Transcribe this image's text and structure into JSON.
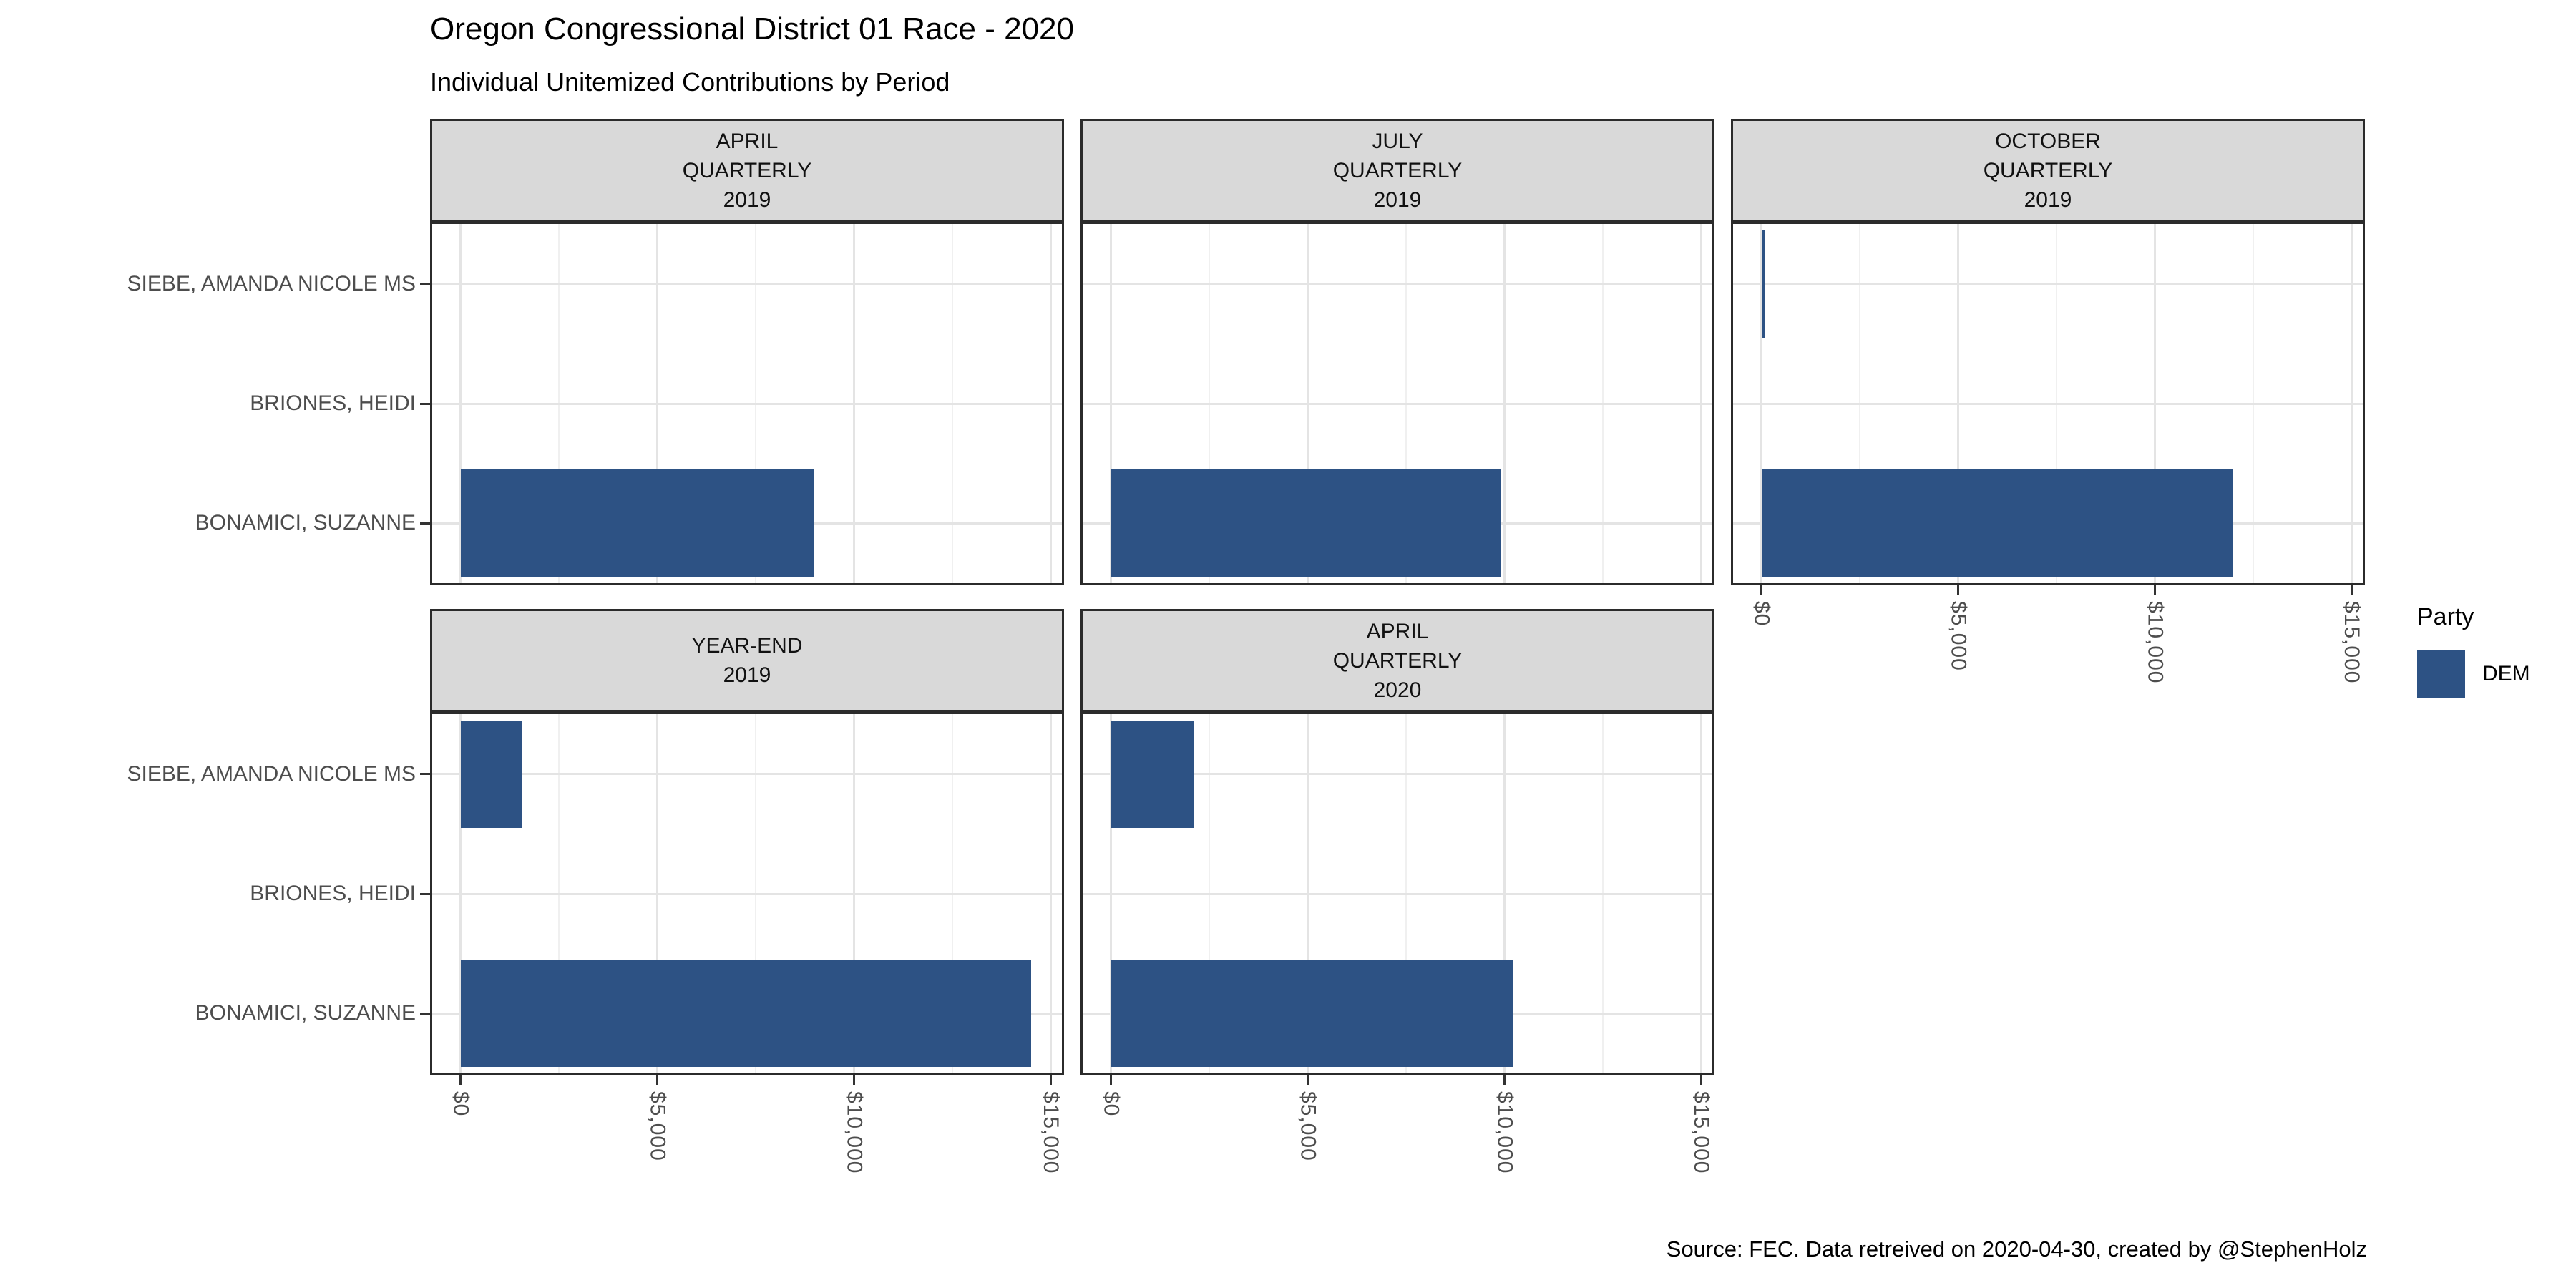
{
  "chart_data": {
    "type": "bar",
    "orientation": "horizontal",
    "title": "Oregon Congressional District 01 Race - 2020",
    "subtitle": "Individual Unitemized Contributions by Period",
    "caption": "Source: FEC. Data retreived on 2020-04-30, created by @StephenHolz",
    "categories": [
      "SIEBE, AMANDA NICOLE MS",
      "BRIONES, HEIDI",
      "BONAMICI, SUZANNE"
    ],
    "x_axis": {
      "tick_labels": [
        "$0",
        "$5,000",
        "$10,000",
        "$15,000"
      ],
      "tick_values": [
        0,
        5000,
        10000,
        15000
      ],
      "minor_tick_values": [
        2500,
        7500,
        12500
      ],
      "xlim": [
        0,
        15000
      ],
      "grid": true,
      "label_rotation_deg": 90
    },
    "facets": [
      {
        "label": "APRIL QUARTERLY 2019",
        "label_lines": [
          "APRIL",
          "QUARTERLY",
          "2019"
        ],
        "values": [
          0,
          0,
          9000
        ]
      },
      {
        "label": "JULY QUARTERLY 2019",
        "label_lines": [
          "JULY",
          "QUARTERLY",
          "2019"
        ],
        "values": [
          0,
          0,
          9900
        ]
      },
      {
        "label": "OCTOBER QUARTERLY 2019",
        "label_lines": [
          "OCTOBER",
          "QUARTERLY",
          "2019"
        ],
        "values": [
          100,
          0,
          12000
        ]
      },
      {
        "label": "YEAR-END 2019",
        "label_lines": [
          "YEAR-END",
          "2019"
        ],
        "values": [
          1570,
          0,
          14500
        ]
      },
      {
        "label": "APRIL QUARTERLY 2020",
        "label_lines": [
          "APRIL",
          "QUARTERLY",
          "2020"
        ],
        "values": [
          2100,
          0,
          10230
        ]
      }
    ],
    "legend": {
      "title": "Party",
      "position": "right",
      "entries": [
        {
          "label": "DEM",
          "color": "#2D5284"
        }
      ]
    },
    "colors": {
      "bar": "#2D5284",
      "strip_bg": "#D9D9D9",
      "panel_border": "#2B2B2B",
      "grid_major": "#E4E4E4",
      "grid_minor": "#F0F0F0",
      "axis_text": "#4D4D4D",
      "tick_mark": "#333333"
    }
  }
}
